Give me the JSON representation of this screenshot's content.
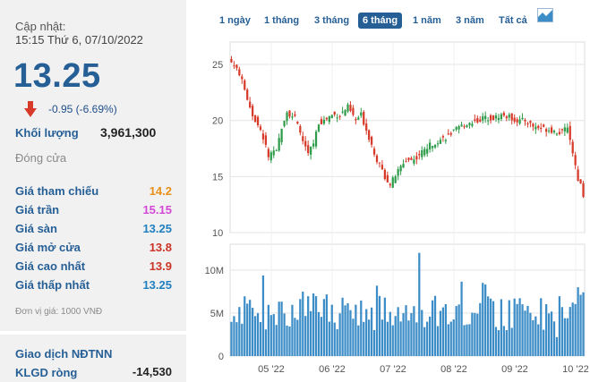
{
  "header": {
    "updated_label": "Cập nhật:",
    "updated_time": "15:15 Thứ 6, 07/10/2022"
  },
  "quote": {
    "price": "13.25",
    "change": "-0.95 (-6.69%)",
    "volume_label": "Khối lượng",
    "volume_value": "3,961,300",
    "status": "Đóng cửa"
  },
  "stats": [
    {
      "label": "Giá tham chiếu",
      "value": "14.2",
      "color": "#e8901a"
    },
    {
      "label": "Giá trần",
      "value": "15.15",
      "color": "#d447d7"
    },
    {
      "label": "Giá sàn",
      "value": "13.25",
      "color": "#1f7fbf"
    },
    {
      "label": "Giá mở cửa",
      "value": "13.8",
      "color": "#cc3326"
    },
    {
      "label": "Giá cao nhất",
      "value": "13.9",
      "color": "#cc3326"
    },
    {
      "label": "Giá thấp nhất",
      "value": "13.25",
      "color": "#1f7fbf"
    }
  ],
  "unit_note": "Đơn vị giá: 1000 VNĐ",
  "foreign": {
    "title": "Giao dịch NĐTNN",
    "klgd_label": "KLGD ròng",
    "klgd_value": "-14,530"
  },
  "tabs": [
    {
      "label": "1 ngày",
      "active": false
    },
    {
      "label": "1 tháng",
      "active": false
    },
    {
      "label": "3 tháng",
      "active": false
    },
    {
      "label": "6 tháng",
      "active": true
    },
    {
      "label": "1 năm",
      "active": false
    },
    {
      "label": "3 năm",
      "active": false
    },
    {
      "label": "Tất cả",
      "active": false
    }
  ],
  "colors": {
    "up": "#2e9c4a",
    "down": "#d83a2a",
    "volume": "#3c8dc7",
    "accent": "#265f96"
  },
  "chart_data": [
    {
      "type": "candlestick",
      "y_ticks": [
        "10",
        "15",
        "20",
        "25"
      ],
      "ylim": [
        10,
        27
      ],
      "x_ticks": [
        "05 '22",
        "06 '22",
        "07 '22",
        "08 '22",
        "09 '22",
        "10 '22"
      ],
      "close_anchors": [
        {
          "day": 0,
          "close": 25.2
        },
        {
          "day": 3,
          "close": 24.2
        },
        {
          "day": 8,
          "close": 20.5
        },
        {
          "day": 12,
          "close": 18.5
        },
        {
          "day": 14,
          "close": 16.8
        },
        {
          "day": 17,
          "close": 17.2
        },
        {
          "day": 19,
          "close": 19.5
        },
        {
          "day": 21,
          "close": 20.8
        },
        {
          "day": 24,
          "close": 20.2
        },
        {
          "day": 27,
          "close": 18.2
        },
        {
          "day": 29,
          "close": 17.0
        },
        {
          "day": 31,
          "close": 18.0
        },
        {
          "day": 33,
          "close": 19.8
        },
        {
          "day": 35,
          "close": 20.0
        },
        {
          "day": 38,
          "close": 20.5
        },
        {
          "day": 41,
          "close": 20.5
        },
        {
          "day": 44,
          "close": 21.2
        },
        {
          "day": 47,
          "close": 20.0
        },
        {
          "day": 49,
          "close": 20.5
        },
        {
          "day": 52,
          "close": 18.5
        },
        {
          "day": 55,
          "close": 16.5
        },
        {
          "day": 58,
          "close": 15.0
        },
        {
          "day": 60,
          "close": 14.3
        },
        {
          "day": 63,
          "close": 15.5
        },
        {
          "day": 66,
          "close": 16.5
        },
        {
          "day": 69,
          "close": 16.5
        },
        {
          "day": 72,
          "close": 17.2
        },
        {
          "day": 75,
          "close": 17.8
        },
        {
          "day": 78,
          "close": 18.2
        },
        {
          "day": 81,
          "close": 18.5
        },
        {
          "day": 84,
          "close": 19.0
        },
        {
          "day": 87,
          "close": 19.5
        },
        {
          "day": 90,
          "close": 19.8
        },
        {
          "day": 93,
          "close": 20.0
        },
        {
          "day": 96,
          "close": 20.3
        },
        {
          "day": 99,
          "close": 20.2
        },
        {
          "day": 102,
          "close": 20.5
        },
        {
          "day": 105,
          "close": 20.3
        },
        {
          "day": 108,
          "close": 20.0
        },
        {
          "day": 111,
          "close": 20.0
        },
        {
          "day": 114,
          "close": 19.5
        },
        {
          "day": 117,
          "close": 19.3
        },
        {
          "day": 120,
          "close": 19.2
        },
        {
          "day": 123,
          "close": 19.0
        },
        {
          "day": 125,
          "close": 18.9
        },
        {
          "day": 127,
          "close": 19.5
        },
        {
          "day": 129,
          "close": 17.2
        },
        {
          "day": 130,
          "close": 15.8
        },
        {
          "day": 131,
          "close": 14.8
        },
        {
          "day": 132,
          "close": 14.2
        },
        {
          "day": 133,
          "close": 13.25
        }
      ],
      "volume_ticks": [
        "0",
        "5M",
        "10M"
      ],
      "volume_max": 13,
      "volume_unit": "M"
    }
  ]
}
